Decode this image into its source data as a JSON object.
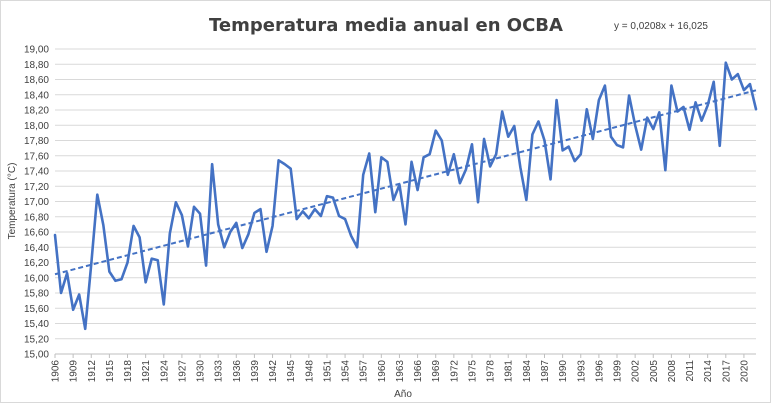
{
  "chart_data": {
    "type": "line",
    "title": "Temperatura media anual en OCBA",
    "xlabel": "Año",
    "ylabel": "Temperatura (°C)",
    "trendline_label": "y = 0,0208x + 16,025",
    "ylim": [
      15.0,
      19.0
    ],
    "y_ticks": [
      "15,00",
      "15,20",
      "15,40",
      "15,60",
      "15,80",
      "16,00",
      "16,20",
      "16,40",
      "16,60",
      "16,80",
      "17,00",
      "17,20",
      "17,40",
      "17,60",
      "17,80",
      "18,00",
      "18,20",
      "18,40",
      "18,60",
      "18,80",
      "19,00"
    ],
    "x_ticks": [
      "1906",
      "1909",
      "1912",
      "1915",
      "1918",
      "1921",
      "1924",
      "1927",
      "1930",
      "1933",
      "1936",
      "1939",
      "1942",
      "1945",
      "1948",
      "1951",
      "1954",
      "1957",
      "1960",
      "1963",
      "1966",
      "1969",
      "1972",
      "1975",
      "1978",
      "1981",
      "1984",
      "1987",
      "1990",
      "1993",
      "1996",
      "1999",
      "2002",
      "2005",
      "2008",
      "2011",
      "2014",
      "2017",
      "2020"
    ],
    "x": [
      1906,
      1907,
      1908,
      1909,
      1910,
      1911,
      1912,
      1913,
      1914,
      1915,
      1916,
      1917,
      1918,
      1919,
      1920,
      1921,
      1922,
      1923,
      1924,
      1925,
      1926,
      1927,
      1928,
      1929,
      1930,
      1931,
      1932,
      1933,
      1934,
      1935,
      1936,
      1937,
      1938,
      1939,
      1940,
      1941,
      1942,
      1943,
      1944,
      1945,
      1946,
      1947,
      1948,
      1949,
      1950,
      1951,
      1952,
      1953,
      1954,
      1955,
      1956,
      1957,
      1958,
      1959,
      1960,
      1961,
      1962,
      1963,
      1964,
      1965,
      1966,
      1967,
      1968,
      1969,
      1970,
      1971,
      1972,
      1973,
      1974,
      1975,
      1976,
      1977,
      1978,
      1979,
      1980,
      1981,
      1982,
      1983,
      1984,
      1985,
      1986,
      1987,
      1988,
      1989,
      1990,
      1991,
      1992,
      1993,
      1994,
      1995,
      1996,
      1997,
      1998,
      1999,
      2000,
      2001,
      2002,
      2003,
      2004,
      2005,
      2006,
      2007,
      2008,
      2009,
      2010,
      2011,
      2012,
      2013,
      2014,
      2015,
      2016,
      2017,
      2018,
      2019,
      2020,
      2021,
      2022
    ],
    "series": [
      {
        "values": [
          16.56,
          15.8,
          16.06,
          15.58,
          15.78,
          15.33,
          16.18,
          17.09,
          16.69,
          16.08,
          15.96,
          15.98,
          16.2,
          16.68,
          16.53,
          15.94,
          16.25,
          16.23,
          15.65,
          16.58,
          16.99,
          16.82,
          16.41,
          16.93,
          16.84,
          16.16,
          17.49,
          16.7,
          16.4,
          16.6,
          16.72,
          16.39,
          16.57,
          16.85,
          16.9,
          16.34,
          16.68,
          17.54,
          17.49,
          17.43,
          16.77,
          16.87,
          16.78,
          16.9,
          16.81,
          17.07,
          17.05,
          16.81,
          16.77,
          16.55,
          16.4,
          17.35,
          17.63,
          16.86,
          17.58,
          17.52,
          17.02,
          17.22,
          16.7,
          17.52,
          17.15,
          17.58,
          17.62,
          17.93,
          17.8,
          17.35,
          17.62,
          17.24,
          17.42,
          17.75,
          16.99,
          17.82,
          17.46,
          17.62,
          18.18,
          17.85,
          17.99,
          17.45,
          17.02,
          17.88,
          18.05,
          17.8,
          17.29,
          18.33,
          17.67,
          17.72,
          17.53,
          17.62,
          18.21,
          17.82,
          18.33,
          18.52,
          17.85,
          17.74,
          17.71,
          18.39,
          18.0,
          17.68,
          18.1,
          17.95,
          18.17,
          17.41,
          18.52,
          18.18,
          18.24,
          17.94,
          18.3,
          18.06,
          18.26,
          18.57,
          17.73,
          18.82,
          18.6,
          18.67,
          18.46,
          18.54,
          18.21
        ]
      }
    ],
    "trendline": {
      "slope": 0.0208,
      "intercept": 16.025,
      "style": "dashed"
    },
    "colors": {
      "series": "#4472c4",
      "grid": "#d9d9d9",
      "text": "#404040"
    },
    "grid": true,
    "legend": "none"
  }
}
